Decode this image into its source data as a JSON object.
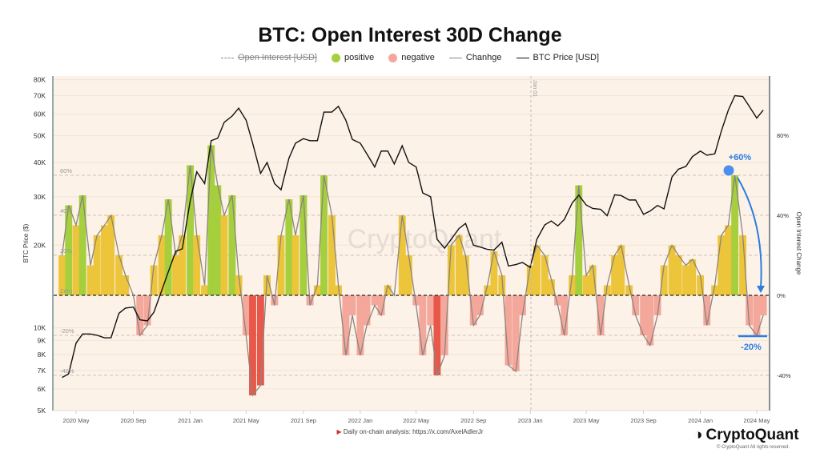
{
  "title": "BTC: Open Interest 30D Change",
  "legend": [
    {
      "label": "Open Interest [USD]",
      "style": "dashed",
      "color": "#888888",
      "disabled": true
    },
    {
      "label": "positive",
      "style": "dot",
      "color": "#a6cf3e"
    },
    {
      "label": "negative",
      "style": "dot",
      "color": "#f4a79b"
    },
    {
      "label": "Chanhge",
      "style": "line",
      "color": "#8c8580"
    },
    {
      "label": "BTC Price [USD]",
      "style": "line",
      "color": "#111111"
    }
  ],
  "footer": {
    "note": "Daily on-chain analysis: https://x.com/AxelAdlerJr",
    "logo": "CryptoQuant",
    "copyright": "© CryptoQuant All rights reserved."
  },
  "watermark": "CryptoQuant",
  "annotations": {
    "peak": "+60%",
    "trough": "-20%",
    "marker": "Jan 01"
  },
  "chart_data": {
    "type": "line+bar",
    "title": "BTC: Open Interest 30D Change",
    "ylabel_left": "BTC Price ($)",
    "ylabel_right": "Open Interest Change",
    "left_scale": "log",
    "ylim_left": [
      5000,
      80000
    ],
    "ylim_right": [
      -57,
      110
    ],
    "left_ticks": [
      "80K",
      "70K",
      "60K",
      "50K",
      "40K",
      "30K",
      "20K",
      "10K",
      "9K",
      "8K",
      "7K",
      "6K",
      "5K"
    ],
    "left_tick_values": [
      80000,
      70000,
      60000,
      50000,
      40000,
      30000,
      20000,
      10000,
      9000,
      8000,
      7000,
      6000,
      5000
    ],
    "right_ticks": [
      "80%",
      "40%",
      "0%",
      "-40%"
    ],
    "right_tick_values": [
      80,
      40,
      0,
      -40
    ],
    "inner_ticks": [
      "60%",
      "40%",
      "20%",
      "Zero",
      "-20%",
      "-40%"
    ],
    "inner_tick_values": [
      60,
      40,
      20,
      0,
      -20,
      -40
    ],
    "x_ticks": [
      "2020 May",
      "2020 Sep",
      "2021 Jan",
      "2021 May",
      "2021 Sep",
      "2022 Jan",
      "2022 May",
      "2022 Sep",
      "2023 Jan",
      "2023 May",
      "2023 Sep",
      "2024 Jan",
      "2024 May"
    ],
    "x_tick_dates": [
      "2020-05-01",
      "2020-09-01",
      "2021-01-01",
      "2021-05-01",
      "2021-09-01",
      "2022-01-01",
      "2022-05-01",
      "2022-09-01",
      "2023-01-01",
      "2023-05-01",
      "2023-09-01",
      "2024-01-01",
      "2024-05-01"
    ],
    "colors": {
      "positive_high": "#a6cf3e",
      "positive": "#ecc53a",
      "negative": "#f4a79b",
      "negative_deep": "#e8584a",
      "change_line": "#8c8580",
      "price": "#111111",
      "annotation": "#2a7de1",
      "background": "#fdf2e8"
    },
    "dates": [
      "2020-04-01",
      "2020-04-15",
      "2020-05-01",
      "2020-05-15",
      "2020-06-01",
      "2020-06-15",
      "2020-07-01",
      "2020-07-15",
      "2020-08-01",
      "2020-08-15",
      "2020-09-01",
      "2020-09-15",
      "2020-10-01",
      "2020-10-15",
      "2020-11-01",
      "2020-11-15",
      "2020-12-01",
      "2020-12-15",
      "2021-01-01",
      "2021-01-15",
      "2021-02-01",
      "2021-02-15",
      "2021-03-01",
      "2021-03-15",
      "2021-04-01",
      "2021-04-15",
      "2021-05-01",
      "2021-05-15",
      "2021-06-01",
      "2021-06-15",
      "2021-07-01",
      "2021-07-15",
      "2021-08-01",
      "2021-08-15",
      "2021-09-01",
      "2021-09-15",
      "2021-10-01",
      "2021-10-15",
      "2021-11-01",
      "2021-11-15",
      "2021-12-01",
      "2021-12-15",
      "2022-01-01",
      "2022-01-15",
      "2022-02-01",
      "2022-02-15",
      "2022-03-01",
      "2022-03-15",
      "2022-04-01",
      "2022-04-15",
      "2022-05-01",
      "2022-05-15",
      "2022-06-01",
      "2022-06-15",
      "2022-07-01",
      "2022-07-15",
      "2022-08-01",
      "2022-08-15",
      "2022-09-01",
      "2022-09-15",
      "2022-10-01",
      "2022-10-15",
      "2022-11-01",
      "2022-11-15",
      "2022-12-01",
      "2022-12-15",
      "2023-01-01",
      "2023-01-15",
      "2023-02-01",
      "2023-02-15",
      "2023-03-01",
      "2023-03-15",
      "2023-04-01",
      "2023-04-15",
      "2023-05-01",
      "2023-05-15",
      "2023-06-01",
      "2023-06-15",
      "2023-07-01",
      "2023-07-15",
      "2023-08-01",
      "2023-08-15",
      "2023-09-01",
      "2023-09-15",
      "2023-10-01",
      "2023-10-15",
      "2023-11-01",
      "2023-11-15",
      "2023-12-01",
      "2023-12-15",
      "2024-01-01",
      "2024-01-15",
      "2024-02-01",
      "2024-02-15",
      "2024-03-01",
      "2024-03-15",
      "2024-04-01",
      "2024-04-15",
      "2024-05-01",
      "2024-05-15"
    ],
    "series": [
      {
        "name": "BTC Price [USD]",
        "axis": "left",
        "values": [
          6600,
          6800,
          8800,
          9500,
          9500,
          9400,
          9200,
          9200,
          11300,
          11800,
          11900,
          10700,
          10600,
          11400,
          13700,
          16000,
          19000,
          19400,
          29000,
          37000,
          33500,
          48000,
          49000,
          56000,
          59000,
          63000,
          57000,
          47000,
          36500,
          40000,
          33500,
          31800,
          41500,
          47000,
          48800,
          48000,
          48000,
          61000,
          61000,
          64000,
          57000,
          48500,
          47000,
          43000,
          38500,
          44000,
          44000,
          39500,
          46000,
          40000,
          38500,
          31000,
          30000,
          21000,
          19500,
          21000,
          23000,
          24000,
          20000,
          19700,
          19300,
          19200,
          20500,
          16800,
          17000,
          17300,
          16600,
          21000,
          23700,
          24500,
          23500,
          24800,
          28500,
          30400,
          28000,
          27200,
          27000,
          25600,
          30500,
          30300,
          29200,
          29200,
          25900,
          26600,
          27900,
          27100,
          35400,
          37800,
          38700,
          42000,
          44000,
          42500,
          43000,
          52000,
          62000,
          70000,
          69500,
          64000,
          58000,
          62000
        ]
      },
      {
        "name": "Chanhge",
        "axis": "right",
        "values": [
          20,
          45,
          35,
          50,
          15,
          30,
          35,
          40,
          20,
          10,
          0,
          -20,
          -15,
          15,
          30,
          48,
          20,
          30,
          65,
          30,
          5,
          75,
          55,
          40,
          50,
          10,
          -20,
          -50,
          -45,
          10,
          -5,
          30,
          48,
          30,
          50,
          -5,
          5,
          60,
          40,
          5,
          -30,
          -10,
          -30,
          -15,
          -5,
          -10,
          5,
          0,
          40,
          20,
          -5,
          -30,
          -15,
          -40,
          -30,
          25,
          30,
          20,
          -15,
          -10,
          5,
          22,
          10,
          -35,
          -38,
          -10,
          15,
          25,
          20,
          8,
          -5,
          -20,
          10,
          55,
          10,
          15,
          -20,
          5,
          20,
          25,
          5,
          -10,
          -20,
          -25,
          -10,
          15,
          25,
          20,
          15,
          18,
          10,
          -15,
          5,
          30,
          35,
          60,
          30,
          -15,
          -20,
          -10
        ]
      }
    ]
  }
}
